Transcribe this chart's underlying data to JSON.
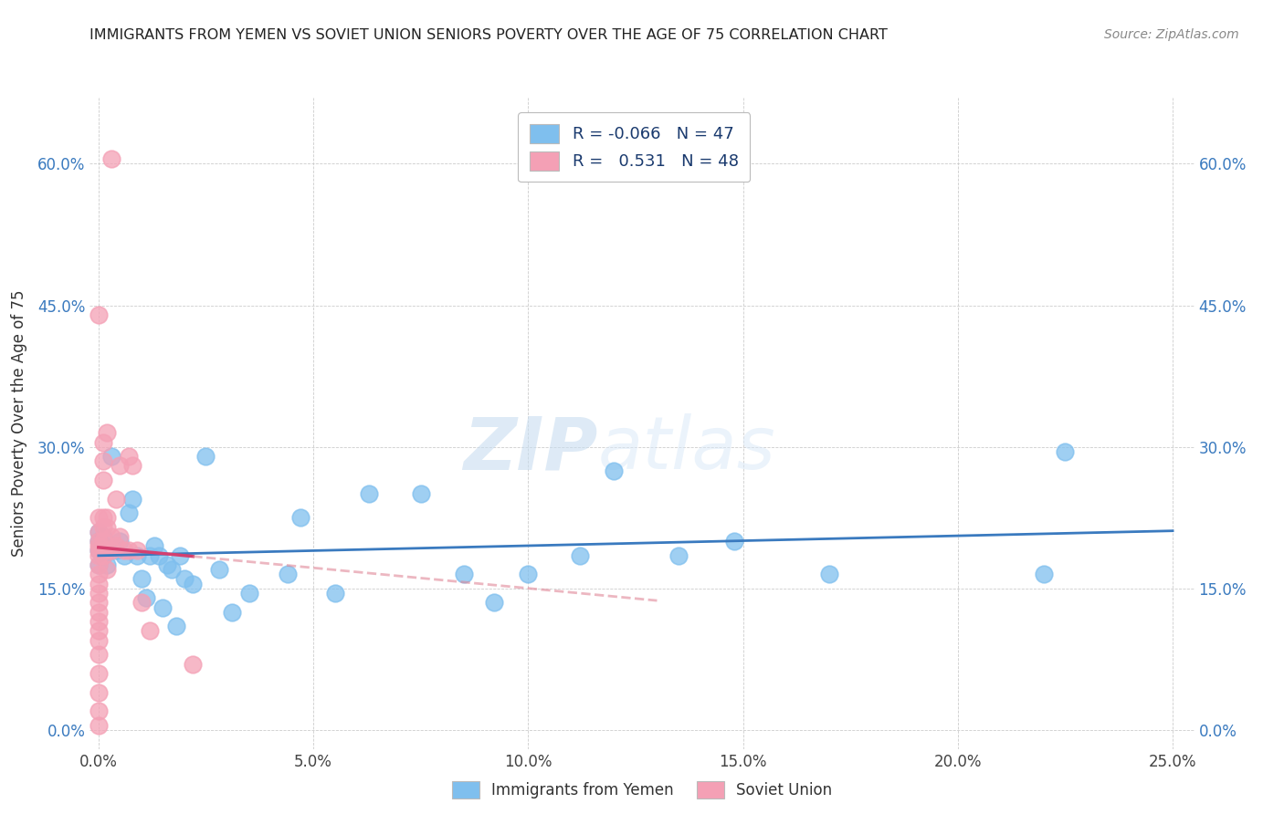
{
  "title": "IMMIGRANTS FROM YEMEN VS SOVIET UNION SENIORS POVERTY OVER THE AGE OF 75 CORRELATION CHART",
  "source": "Source: ZipAtlas.com",
  "ylabel": "Seniors Poverty Over the Age of 75",
  "blue_color": "#7fbfee",
  "pink_color": "#f4a0b5",
  "blue_line_color": "#3a7abf",
  "pink_line_color": "#d44070",
  "pink_line_dash_color": "#e08898",
  "watermark_zip": "ZIP",
  "watermark_atlas": "atlas",
  "xlim": [
    -0.002,
    0.255
  ],
  "ylim": [
    -0.02,
    0.67
  ],
  "x_ticks": [
    0.0,
    0.05,
    0.1,
    0.15,
    0.2,
    0.25
  ],
  "y_ticks": [
    0.0,
    0.15,
    0.3,
    0.45,
    0.6
  ],
  "blue_scatter_x": [
    0.0,
    0.0,
    0.0,
    0.0,
    0.001,
    0.001,
    0.001,
    0.002,
    0.002,
    0.003,
    0.004,
    0.005,
    0.006,
    0.007,
    0.008,
    0.009,
    0.01,
    0.011,
    0.012,
    0.013,
    0.014,
    0.015,
    0.016,
    0.017,
    0.018,
    0.019,
    0.02,
    0.022,
    0.025,
    0.028,
    0.031,
    0.035,
    0.044,
    0.047,
    0.055,
    0.063,
    0.075,
    0.085,
    0.092,
    0.1,
    0.112,
    0.12,
    0.135,
    0.148,
    0.17,
    0.22,
    0.225
  ],
  "blue_scatter_y": [
    0.19,
    0.175,
    0.2,
    0.21,
    0.185,
    0.195,
    0.205,
    0.175,
    0.19,
    0.29,
    0.19,
    0.2,
    0.185,
    0.23,
    0.245,
    0.185,
    0.16,
    0.14,
    0.185,
    0.195,
    0.185,
    0.13,
    0.175,
    0.17,
    0.11,
    0.185,
    0.16,
    0.155,
    0.29,
    0.17,
    0.125,
    0.145,
    0.165,
    0.225,
    0.145,
    0.25,
    0.25,
    0.165,
    0.135,
    0.165,
    0.185,
    0.275,
    0.185,
    0.2,
    0.165,
    0.165,
    0.295
  ],
  "pink_scatter_x": [
    0.0,
    0.0,
    0.0,
    0.0,
    0.0,
    0.0,
    0.0,
    0.0,
    0.0,
    0.0,
    0.0,
    0.0,
    0.0,
    0.0,
    0.0,
    0.0,
    0.0,
    0.0,
    0.0,
    0.0,
    0.0,
    0.001,
    0.001,
    0.001,
    0.001,
    0.001,
    0.001,
    0.001,
    0.002,
    0.002,
    0.002,
    0.002,
    0.002,
    0.003,
    0.003,
    0.003,
    0.004,
    0.004,
    0.005,
    0.005,
    0.006,
    0.007,
    0.007,
    0.008,
    0.009,
    0.01,
    0.012,
    0.022
  ],
  "pink_scatter_y": [
    0.005,
    0.02,
    0.04,
    0.06,
    0.08,
    0.095,
    0.105,
    0.115,
    0.125,
    0.135,
    0.145,
    0.155,
    0.165,
    0.175,
    0.185,
    0.195,
    0.21,
    0.225,
    0.44,
    0.19,
    0.2,
    0.185,
    0.2,
    0.215,
    0.225,
    0.265,
    0.285,
    0.305,
    0.17,
    0.19,
    0.215,
    0.225,
    0.315,
    0.19,
    0.205,
    0.605,
    0.195,
    0.245,
    0.205,
    0.28,
    0.19,
    0.19,
    0.29,
    0.28,
    0.19,
    0.135,
    0.105,
    0.07
  ]
}
